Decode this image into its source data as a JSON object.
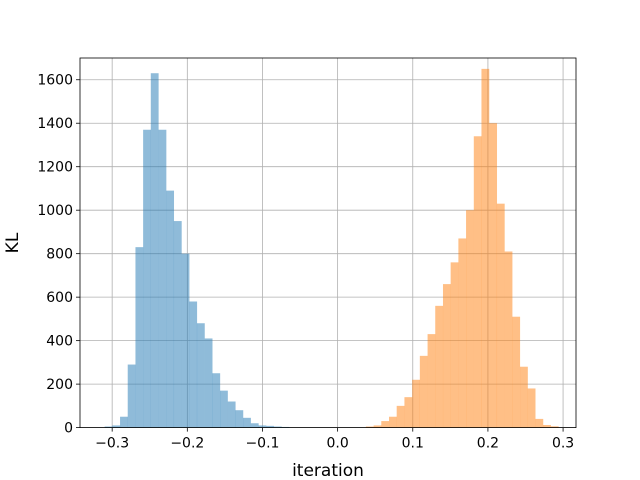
{
  "chart_data": {
    "type": "histogram",
    "title": "",
    "xlabel": "iteration",
    "ylabel": "KL",
    "xlim": [
      -0.3428,
      0.3172
    ],
    "ylim": [
      0,
      1700
    ],
    "grid": true,
    "bin_width": 0.01,
    "x_ticks": [
      -0.3,
      -0.2,
      -0.1,
      0.0,
      0.1,
      0.2,
      0.3
    ],
    "x_tick_labels": [
      "−0.3",
      "−0.2",
      "−0.1",
      "0.0",
      "0.1",
      "0.2",
      "0.3"
    ],
    "y_ticks": [
      0,
      200,
      400,
      600,
      800,
      1000,
      1200,
      1400,
      1600
    ],
    "y_tick_labels": [
      "0",
      "200",
      "400",
      "600",
      "800",
      "1000",
      "1200",
      "1400",
      "1600"
    ],
    "colors": [
      "#1f77b4",
      "#ff7f0e"
    ],
    "opacity": 0.5,
    "series": [
      {
        "bin_starts": [
          -0.31,
          -0.2997,
          -0.2895,
          -0.2793,
          -0.269,
          -0.2588,
          -0.2486,
          -0.2383,
          -0.2281,
          -0.2179,
          -0.2076,
          -0.1974,
          -0.1872,
          -0.1769,
          -0.1667,
          -0.1565,
          -0.1462,
          -0.136,
          -0.1258,
          -0.1155,
          -0.1053,
          -0.0951,
          -0.0848,
          -0.0746
        ],
        "values": [
          5,
          10,
          50,
          290,
          830,
          1370,
          1630,
          1370,
          1090,
          950,
          800,
          580,
          480,
          410,
          250,
          170,
          120,
          80,
          45,
          20,
          10,
          8,
          5,
          3
        ]
      },
      {
        "bin_starts": [
          0.0376,
          0.0479,
          0.0581,
          0.0684,
          0.0786,
          0.0889,
          0.0992,
          0.1094,
          0.1197,
          0.1299,
          0.1402,
          0.1504,
          0.1607,
          0.1709,
          0.1812,
          0.1914,
          0.2017,
          0.2119,
          0.2222,
          0.2324,
          0.2427,
          0.2529,
          0.2632,
          0.2734,
          0.2837
        ],
        "values": [
          5,
          10,
          30,
          50,
          100,
          140,
          220,
          330,
          430,
          560,
          660,
          760,
          870,
          1000,
          1340,
          1650,
          1400,
          1030,
          810,
          510,
          280,
          180,
          40,
          12,
          6
        ]
      }
    ]
  }
}
